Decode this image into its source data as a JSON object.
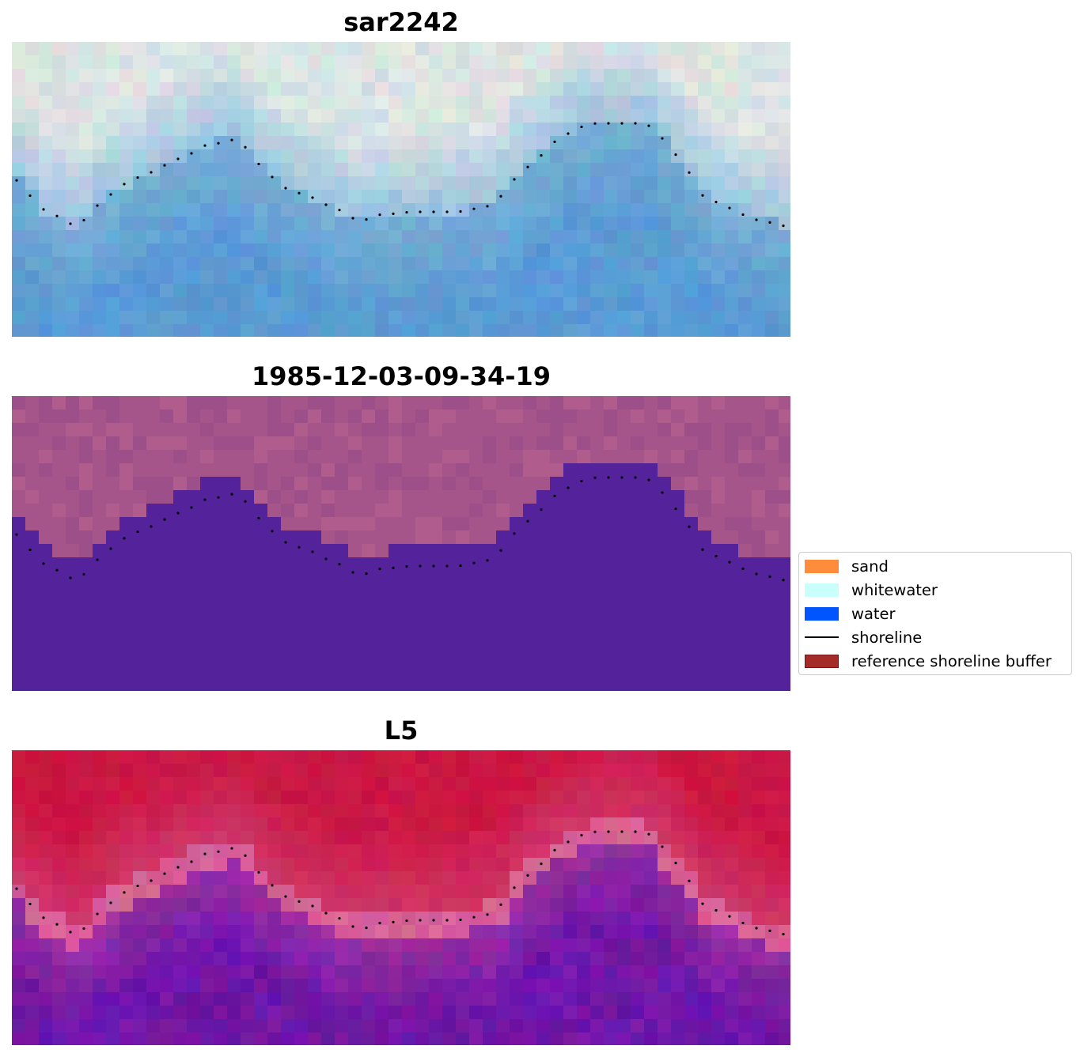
{
  "panels": [
    {
      "title": "sar2242",
      "style": "rgb"
    },
    {
      "title": "1985-12-03-09-34-19",
      "style": "classified"
    },
    {
      "title": "L5",
      "style": "index"
    }
  ],
  "legend": {
    "items": [
      {
        "label": "sand",
        "color": "#ff8c3a",
        "kind": "patch"
      },
      {
        "label": "whitewater",
        "color": "#c9fffb",
        "kind": "patch"
      },
      {
        "label": "water",
        "color": "#0055ff",
        "kind": "patch"
      },
      {
        "label": "shoreline",
        "color": "#000000",
        "kind": "line"
      },
      {
        "label": "reference shoreline buffer",
        "color": "#a52a2a",
        "kind": "patch"
      }
    ]
  },
  "colors": {
    "classified_land": "#a5558a",
    "classified_water": "#54239b",
    "index_land": "#c4234e",
    "index_water": "#650f98"
  }
}
